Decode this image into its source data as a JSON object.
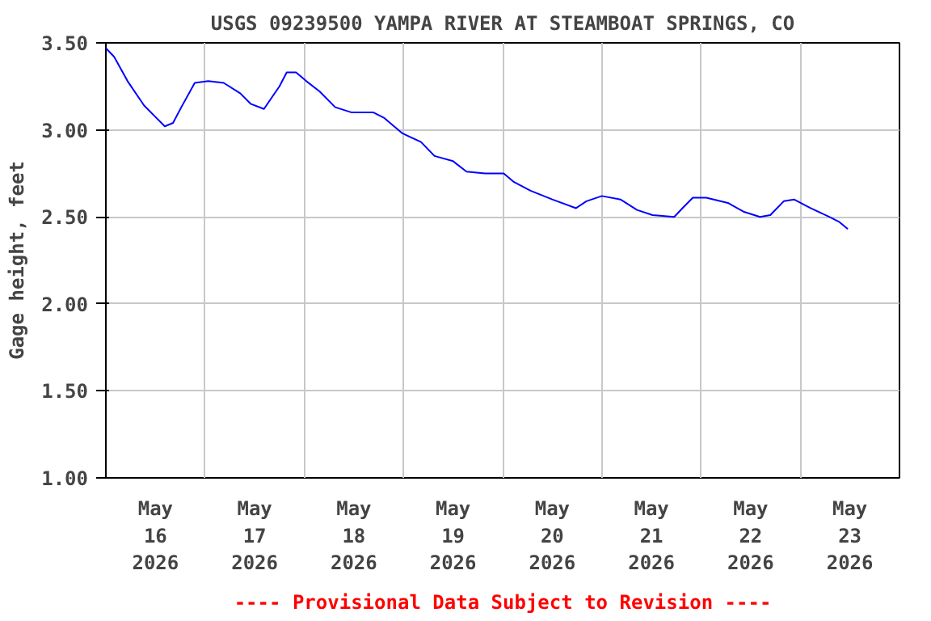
{
  "chart_data": {
    "type": "line",
    "title": "USGS 09239500 YAMPA RIVER AT STEAMBOAT SPRINGS, CO",
    "ylabel": "Gage height, feet",
    "annotations": [
      "---- Provisional Data Subject to Revision ----"
    ],
    "x": [
      "2026-05-16T00:00",
      "2026-05-16T02:00",
      "2026-05-16T05:15",
      "2026-05-16T09:15",
      "2026-05-16T11:45",
      "2026-05-16T14:15",
      "2026-05-16T16:15",
      "2026-05-16T18:15",
      "2026-05-16T21:30",
      "2026-05-17T00:45",
      "2026-05-17T04:30",
      "2026-05-17T08:30",
      "2026-05-17T11:00",
      "2026-05-17T14:15",
      "2026-05-17T16:15",
      "2026-05-17T18:00",
      "2026-05-17T19:45",
      "2026-05-17T22:00",
      "2026-05-18T00:30",
      "2026-05-18T03:45",
      "2026-05-18T07:30",
      "2026-05-18T11:30",
      "2026-05-18T16:45",
      "2026-05-18T19:15",
      "2026-05-18T23:45",
      "2026-05-19T04:15",
      "2026-05-19T07:30",
      "2026-05-19T12:00",
      "2026-05-19T15:15",
      "2026-05-19T19:45",
      "2026-05-20T00:15",
      "2026-05-20T02:45",
      "2026-05-20T06:45",
      "2026-05-20T12:00",
      "2026-05-20T17:45",
      "2026-05-20T20:15",
      "2026-05-21T00:00",
      "2026-05-21T04:30",
      "2026-05-21T08:30",
      "2026-05-21T12:15",
      "2026-05-21T17:30",
      "2026-05-21T19:30",
      "2026-05-21T22:00",
      "2026-05-22T01:15",
      "2026-05-22T06:30",
      "2026-05-22T10:15",
      "2026-05-22T14:15",
      "2026-05-22T16:45",
      "2026-05-22T20:00",
      "2026-05-22T22:30",
      "2026-05-23T02:30",
      "2026-05-23T07:00",
      "2026-05-23T09:30",
      "2026-05-23T11:30"
    ],
    "series": [
      {
        "color": "#0000ff",
        "values": [
          3.47,
          3.42,
          3.28,
          3.14,
          3.08,
          3.02,
          3.04,
          3.13,
          3.27,
          3.28,
          3.27,
          3.21,
          3.15,
          3.12,
          3.19,
          3.25,
          3.33,
          3.33,
          3.28,
          3.22,
          3.13,
          3.1,
          3.1,
          3.07,
          2.98,
          2.93,
          2.85,
          2.82,
          2.76,
          2.75,
          2.75,
          2.7,
          2.65,
          2.6,
          2.55,
          2.59,
          2.62,
          2.6,
          2.54,
          2.51,
          2.5,
          2.55,
          2.61,
          2.61,
          2.58,
          2.53,
          2.5,
          2.51,
          2.59,
          2.6,
          2.55,
          2.5,
          2.47,
          2.43
        ]
      }
    ],
    "xlim": [
      "2026-05-16T00:00",
      "2026-05-24T00:00"
    ],
    "xticks": [
      {
        "value": "2026-05-16T12:00",
        "label": "May\n16\n2026"
      },
      {
        "value": "2026-05-17T12:00",
        "label": "May\n17\n2026"
      },
      {
        "value": "2026-05-18T12:00",
        "label": "May\n18\n2026"
      },
      {
        "value": "2026-05-19T12:00",
        "label": "May\n19\n2026"
      },
      {
        "value": "2026-05-20T12:00",
        "label": "May\n20\n2026"
      },
      {
        "value": "2026-05-21T12:00",
        "label": "May\n21\n2026"
      },
      {
        "value": "2026-05-22T12:00",
        "label": "May\n22\n2026"
      },
      {
        "value": "2026-05-23T12:00",
        "label": "May\n23\n2026"
      },
      {
        "value": "2026-05-17T00:00",
        "label": null
      },
      {
        "value": "2026-05-18T00:00",
        "label": null
      },
      {
        "value": "2026-05-19T00:00",
        "label": null
      },
      {
        "value": "2026-05-20T00:00",
        "label": null
      },
      {
        "value": "2026-05-21T00:00",
        "label": null
      },
      {
        "value": "2026-05-22T00:00",
        "label": null
      },
      {
        "value": "2026-05-23T00:00",
        "label": null
      }
    ],
    "ylim": [
      1.0,
      3.5
    ],
    "yticks": [
      {
        "value": 1.0,
        "label": "1.00"
      },
      {
        "value": 1.5,
        "label": "1.50"
      },
      {
        "value": 2.0,
        "label": "2.00"
      },
      {
        "value": 2.5,
        "label": "2.50"
      },
      {
        "value": 3.0,
        "label": "3.00"
      },
      {
        "value": 3.5,
        "label": "3.50"
      }
    ],
    "grid": true,
    "line_style": "solid"
  }
}
